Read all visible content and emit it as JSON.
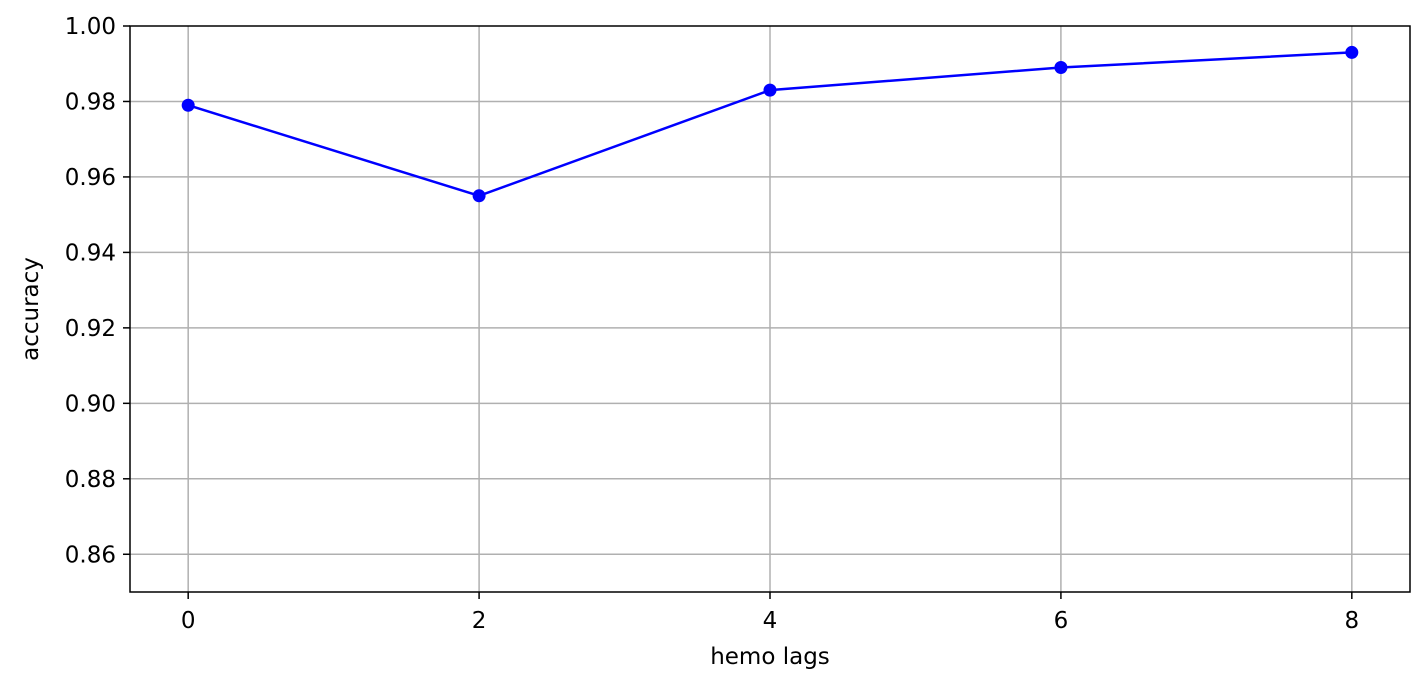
{
  "chart_data": {
    "type": "line",
    "title": "",
    "xlabel": "hemo lags",
    "ylabel": "accuracy",
    "xlim": [
      -0.4,
      8.4
    ],
    "ylim": [
      0.85,
      1.0
    ],
    "grid": true,
    "x_ticks": [
      0,
      2,
      4,
      6,
      8
    ],
    "x_tick_labels": [
      "0",
      "2",
      "4",
      "6",
      "8"
    ],
    "y_ticks": [
      0.86,
      0.88,
      0.9,
      0.92,
      0.94,
      0.96,
      0.98,
      1.0
    ],
    "y_tick_labels": [
      "0.86",
      "0.88",
      "0.90",
      "0.92",
      "0.94",
      "0.96",
      "0.98",
      "1.00"
    ],
    "series": [
      {
        "color": "#0000ff",
        "marker": "circle",
        "x": [
          0,
          2,
          4,
          6,
          8
        ],
        "y": [
          0.979,
          0.955,
          0.983,
          0.989,
          0.993
        ]
      }
    ]
  }
}
